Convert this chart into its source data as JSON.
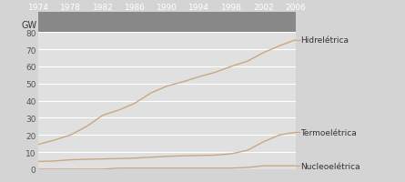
{
  "years": [
    1974,
    1976,
    1978,
    1980,
    1982,
    1984,
    1986,
    1988,
    1990,
    1992,
    1994,
    1996,
    1998,
    2000,
    2002,
    2004,
    2006
  ],
  "hidro": [
    14.5,
    17.0,
    20.0,
    25.0,
    31.5,
    34.5,
    38.5,
    44.5,
    48.5,
    51.0,
    54.0,
    56.5,
    60.0,
    63.0,
    68.0,
    72.0,
    75.5
  ],
  "termo": [
    4.5,
    4.8,
    5.5,
    5.8,
    6.0,
    6.2,
    6.5,
    7.0,
    7.5,
    7.8,
    8.0,
    8.2,
    9.0,
    11.0,
    16.0,
    20.0,
    21.5
  ],
  "nucleo": [
    0.0,
    0.0,
    0.0,
    0.0,
    0.0,
    0.65,
    0.65,
    0.65,
    0.65,
    0.65,
    0.65,
    0.65,
    0.65,
    1.0,
    2.0,
    2.0,
    2.0
  ],
  "xticks": [
    1974,
    1978,
    1982,
    1986,
    1990,
    1994,
    1998,
    2002,
    2006
  ],
  "yticks": [
    0,
    10,
    20,
    30,
    40,
    50,
    60,
    70,
    80
  ],
  "ylim": [
    0,
    80
  ],
  "xlim": [
    1974,
    2006
  ],
  "ylabel": "GW",
  "line_color": "#c8a882",
  "fig_bg_color": "#d4d4d4",
  "plot_bg": "#e0e0e0",
  "header_bg": "#888888",
  "header_text_color": "#ffffff",
  "ytick_color": "#555555",
  "label_hidro": "Hidrelétrica",
  "label_termo": "Termoelétrica",
  "label_nucleo": "Nucleoelétrica",
  "grid_color": "#ffffff",
  "annotation_color": "#333333"
}
